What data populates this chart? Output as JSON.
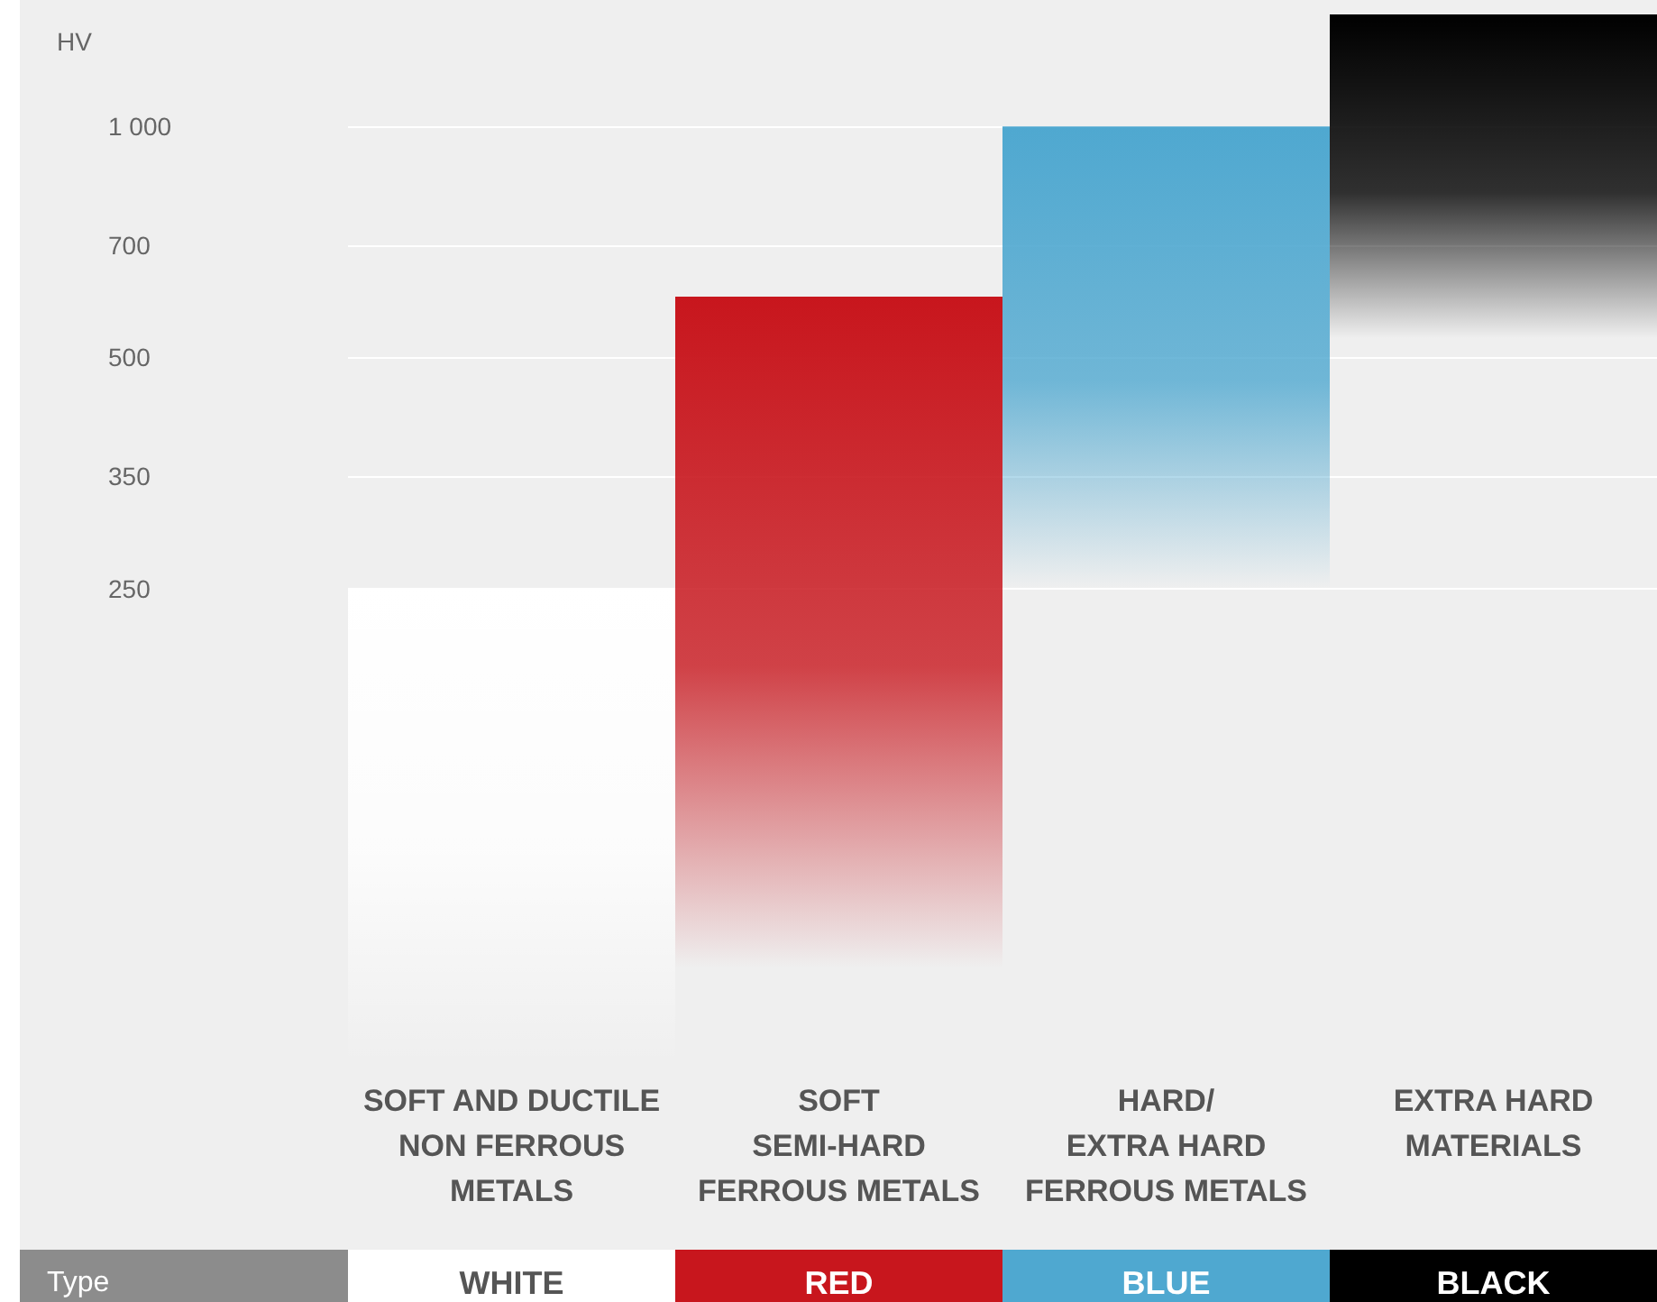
{
  "chart_data": {
    "type": "bar",
    "ylabel": "HV",
    "categories": [
      "SOFT AND DUCTILE\nNON FERROUS\nMETALS",
      "SOFT\nSEMI-HARD\nFERROUS METALS",
      "HARD/\nEXTRA HARD\nFERROUS METALS",
      "EXTRA HARD\nMATERIALS"
    ],
    "base": [
      60,
      80,
      250,
      530
    ],
    "values": [
      190,
      520,
      750,
      870
    ],
    "colors": [
      "#ffffff",
      "#c8161d",
      "#4fa8d0",
      "#000000"
    ],
    "log": true,
    "ylim": [
      60,
      1400
    ],
    "yticks": [
      250,
      350,
      500,
      700,
      {
        "value": 1000,
        "label": "1 000"
      }
    ],
    "grid": "y",
    "annotations": [
      "Type",
      "WHITE",
      "RED",
      "BLUE",
      "BLACK"
    ]
  }
}
